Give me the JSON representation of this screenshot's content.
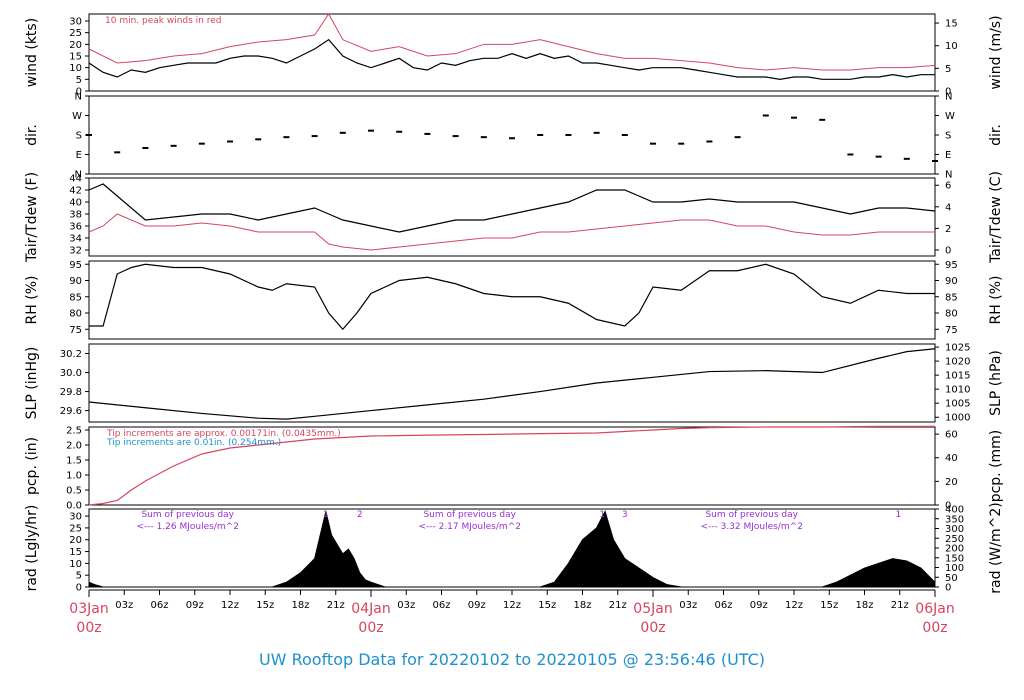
{
  "footer": "UW Rooftop Data for 20220102  to  20220105 @ 23:56:46  (UTC)",
  "colors": {
    "red": "#d6455d",
    "blue": "#1e90d0",
    "purple": "#9b2fd6",
    "black": "#000000"
  },
  "x_axis": {
    "hour_ticks": [
      "03z",
      "06z",
      "09z",
      "12z",
      "15z",
      "18z",
      "21z",
      "03z",
      "06z",
      "09z",
      "12z",
      "15z",
      "18z",
      "21z",
      "03z",
      "06z",
      "09z",
      "12z",
      "15z",
      "18z",
      "21z"
    ],
    "day_labels": [
      {
        "date": "03Jan",
        "hour": "00z",
        "day": 0
      },
      {
        "date": "04Jan",
        "hour": "00z",
        "day": 1
      },
      {
        "date": "05Jan",
        "hour": "00z",
        "day": 2
      },
      {
        "date": "06Jan",
        "hour": "00z",
        "day": 3
      }
    ]
  },
  "chart_data": [
    {
      "id": "wind",
      "type": "line",
      "ylabel": "wind (kts)",
      "ylabel_right": "wind (m/s)",
      "ylim": [
        0,
        33
      ],
      "yticks": [
        0,
        5,
        10,
        15,
        20,
        25,
        30
      ],
      "ylim_right": [
        0,
        17
      ],
      "yticks_right": [
        0,
        5,
        10,
        15
      ],
      "annotation": "10 min. peak winds in red",
      "series": [
        {
          "color": "#000000",
          "x": [
            0,
            0.05,
            0.1,
            0.15,
            0.2,
            0.25,
            0.3,
            0.35,
            0.4,
            0.45,
            0.5,
            0.55,
            0.6,
            0.65,
            0.7,
            0.75,
            0.8,
            0.85,
            0.9,
            0.95,
            1.0,
            1.05,
            1.1,
            1.15,
            1.2,
            1.25,
            1.3,
            1.35,
            1.4,
            1.45,
            1.5,
            1.55,
            1.6,
            1.65,
            1.7,
            1.75,
            1.8,
            1.85,
            1.9,
            1.95,
            2.0,
            2.05,
            2.1,
            2.15,
            2.2,
            2.25,
            2.3,
            2.35,
            2.4,
            2.45,
            2.5,
            2.55,
            2.6,
            2.65,
            2.7,
            2.75,
            2.8,
            2.85,
            2.9,
            2.95,
            3.0
          ],
          "y": [
            12,
            8,
            6,
            9,
            8,
            10,
            11,
            12,
            12,
            12,
            14,
            15,
            15,
            14,
            12,
            15,
            18,
            22,
            15,
            12,
            10,
            12,
            14,
            10,
            9,
            12,
            11,
            13,
            14,
            14,
            16,
            14,
            16,
            14,
            15,
            12,
            12,
            11,
            10,
            9,
            10,
            10,
            10,
            9,
            8,
            7,
            6,
            6,
            6,
            5,
            6,
            6,
            5,
            5,
            5,
            6,
            6,
            7,
            6,
            7,
            7
          ]
        },
        {
          "name": "10 min. peak winds in red",
          "color": "#d6455d",
          "x": [
            0,
            0.1,
            0.2,
            0.3,
            0.4,
            0.5,
            0.6,
            0.7,
            0.8,
            0.85,
            0.9,
            1.0,
            1.1,
            1.2,
            1.3,
            1.4,
            1.5,
            1.6,
            1.7,
            1.8,
            1.9,
            2.0,
            2.1,
            2.2,
            2.3,
            2.4,
            2.5,
            2.6,
            2.7,
            2.8,
            2.9,
            3.0
          ],
          "y": [
            18,
            12,
            13,
            15,
            16,
            19,
            21,
            22,
            24,
            33,
            22,
            17,
            19,
            15,
            16,
            20,
            20,
            22,
            19,
            16,
            14,
            14,
            13,
            12,
            10,
            9,
            10,
            9,
            9,
            10,
            10,
            11
          ]
        }
      ]
    },
    {
      "id": "dir",
      "type": "scatter",
      "ylabel": "dir.",
      "ylabel_right": "dir.",
      "ylim": [
        0,
        360
      ],
      "yticks_labels": [
        "N",
        "E",
        "S",
        "W",
        "N"
      ],
      "yticks_values": [
        0,
        90,
        180,
        270,
        360
      ],
      "series": [
        {
          "color": "#000000",
          "x": [
            0,
            0.1,
            0.2,
            0.3,
            0.4,
            0.5,
            0.6,
            0.7,
            0.8,
            0.9,
            1.0,
            1.1,
            1.2,
            1.3,
            1.4,
            1.5,
            1.6,
            1.7,
            1.8,
            1.9,
            2.0,
            2.1,
            2.2,
            2.3,
            2.4,
            2.5,
            2.6,
            2.7,
            2.8,
            2.9,
            3.0
          ],
          "y": [
            180,
            100,
            120,
            130,
            140,
            150,
            160,
            170,
            175,
            190,
            200,
            195,
            185,
            175,
            170,
            165,
            180,
            180,
            190,
            180,
            140,
            140,
            150,
            170,
            270,
            260,
            250,
            90,
            80,
            70,
            60
          ]
        }
      ]
    },
    {
      "id": "temp",
      "type": "line",
      "ylabel": "Tair/Tdew (F)",
      "ylabel_right": "Tair/Tdew (C)",
      "ylim": [
        31,
        44
      ],
      "yticks": [
        32,
        34,
        36,
        38,
        40,
        42,
        44
      ],
      "ylim_right": [
        -0.56,
        6.67
      ],
      "yticks_right": [
        0,
        2,
        4,
        6
      ],
      "series": [
        {
          "name": "Tair",
          "color": "#000000",
          "x": [
            0,
            0.05,
            0.1,
            0.2,
            0.3,
            0.4,
            0.5,
            0.6,
            0.7,
            0.8,
            0.85,
            0.9,
            1.0,
            1.1,
            1.2,
            1.3,
            1.4,
            1.5,
            1.6,
            1.7,
            1.8,
            1.9,
            2.0,
            2.1,
            2.2,
            2.3,
            2.4,
            2.5,
            2.6,
            2.7,
            2.8,
            2.9,
            3.0
          ],
          "y": [
            42,
            43,
            41,
            37,
            37.5,
            38,
            38,
            37,
            38,
            39,
            38,
            37,
            36,
            35,
            36,
            37,
            37,
            38,
            39,
            40,
            42,
            42,
            40,
            40,
            40.5,
            40,
            40,
            40,
            39,
            38,
            39,
            39,
            38.5
          ]
        },
        {
          "name": "Tdew",
          "color": "#d6455d",
          "x": [
            0,
            0.05,
            0.1,
            0.2,
            0.3,
            0.4,
            0.5,
            0.6,
            0.7,
            0.8,
            0.85,
            0.9,
            1.0,
            1.1,
            1.2,
            1.3,
            1.4,
            1.5,
            1.6,
            1.7,
            1.8,
            1.9,
            2.0,
            2.1,
            2.2,
            2.3,
            2.4,
            2.5,
            2.6,
            2.7,
            2.8,
            2.9,
            3.0
          ],
          "y": [
            35,
            36,
            38,
            36,
            36,
            36.5,
            36,
            35,
            35,
            35,
            33,
            32.5,
            32,
            32.5,
            33,
            33.5,
            34,
            34,
            35,
            35,
            35.5,
            36,
            36.5,
            37,
            37,
            36,
            36,
            35,
            34.5,
            34.5,
            35,
            35,
            35
          ]
        }
      ]
    },
    {
      "id": "rh",
      "type": "line",
      "ylabel": "RH (%)",
      "ylabel_right": "RH (%)",
      "ylim": [
        72,
        96
      ],
      "yticks": [
        75,
        80,
        85,
        90,
        95
      ],
      "series": [
        {
          "color": "#000000",
          "x": [
            0,
            0.05,
            0.1,
            0.15,
            0.2,
            0.3,
            0.4,
            0.5,
            0.6,
            0.65,
            0.7,
            0.8,
            0.85,
            0.9,
            0.95,
            1.0,
            1.1,
            1.2,
            1.3,
            1.4,
            1.5,
            1.6,
            1.7,
            1.8,
            1.9,
            1.95,
            2.0,
            2.1,
            2.2,
            2.3,
            2.4,
            2.5,
            2.6,
            2.7,
            2.8,
            2.9,
            3.0
          ],
          "y": [
            76,
            76,
            92,
            94,
            95,
            94,
            94,
            92,
            88,
            87,
            89,
            88,
            80,
            75,
            80,
            86,
            90,
            91,
            89,
            86,
            85,
            85,
            83,
            78,
            76,
            80,
            88,
            87,
            93,
            93,
            95,
            92,
            85,
            83,
            87,
            86,
            86
          ]
        }
      ]
    },
    {
      "id": "slp",
      "type": "line",
      "ylabel": "SLP (inHg)",
      "ylabel_right": "SLP (hPa)",
      "ylim": [
        29.48,
        30.3
      ],
      "yticks": [
        29.6,
        29.8,
        30.0,
        30.2
      ],
      "ylim_right": [
        998.3,
        1026.1
      ],
      "yticks_right": [
        1000,
        1005,
        1010,
        1015,
        1020,
        1025
      ],
      "series": [
        {
          "color": "#000000",
          "x": [
            0,
            0.2,
            0.4,
            0.6,
            0.7,
            0.8,
            1.0,
            1.2,
            1.4,
            1.6,
            1.8,
            2.0,
            2.2,
            2.4,
            2.6,
            2.8,
            2.9,
            3.0
          ],
          "y": [
            29.69,
            29.63,
            29.57,
            29.52,
            29.51,
            29.54,
            29.6,
            29.66,
            29.72,
            29.8,
            29.89,
            29.95,
            30.01,
            30.02,
            30.0,
            30.15,
            30.22,
            30.25
          ]
        }
      ]
    },
    {
      "id": "pcp",
      "type": "line",
      "ylabel": "pcp. (in)",
      "ylabel_right": "pcp. (mm)",
      "ylim": [
        0,
        2.6
      ],
      "yticks": [
        0.0,
        0.5,
        1.0,
        1.5,
        2.0,
        2.5
      ],
      "ylim_right": [
        0,
        66
      ],
      "yticks_right": [
        0,
        20,
        40,
        60
      ],
      "annotations": [
        {
          "text": "Tip increments are approx. 0.00171in. (0.0435mm.)",
          "color": "#d6455d"
        },
        {
          "text": "Tip increments are 0.01in. (0.254mm.)",
          "color": "#1e90d0"
        }
      ],
      "series": [
        {
          "color": "#d6455d",
          "x": [
            0,
            0.05,
            0.1,
            0.15,
            0.2,
            0.3,
            0.4,
            0.5,
            0.6,
            0.7,
            0.8,
            0.9,
            1.0,
            1.2,
            1.4,
            1.6,
            1.8,
            2.0,
            2.1,
            2.2,
            2.4,
            2.6,
            2.8,
            3.0
          ],
          "y": [
            0,
            0.05,
            0.15,
            0.5,
            0.8,
            1.3,
            1.7,
            1.9,
            2.0,
            2.1,
            2.2,
            2.25,
            2.3,
            2.33,
            2.35,
            2.38,
            2.4,
            2.5,
            2.55,
            2.58,
            2.6,
            2.6,
            2.62,
            2.62
          ]
        }
      ]
    },
    {
      "id": "rad",
      "type": "area",
      "ylabel": "rad (Lgly/hr)",
      "ylabel_right": "rad (W/m^2)",
      "ylim": [
        0,
        33
      ],
      "yticks": [
        0,
        5,
        10,
        15,
        20,
        25,
        30
      ],
      "ylim_right": [
        0,
        400
      ],
      "yticks_right": [
        0,
        50,
        100,
        150,
        200,
        250,
        300,
        350,
        400
      ],
      "annotations": [
        {
          "line1": "Sum of previous day",
          "line2": "<--- 1.26 MJoules/m^2",
          "day": 0.35
        },
        {
          "line1": "Sum of previous day",
          "line2": "<--- 2.17 MJoules/m^2",
          "day": 1.35
        },
        {
          "line1": "Sum of previous day",
          "line2": "<--- 3.32 MJoules/m^2",
          "day": 2.35
        }
      ],
      "markers": [
        {
          "label": "1",
          "day": 0.84
        },
        {
          "label": "2",
          "day": 0.96
        },
        {
          "label": "1",
          "day": 1.82
        },
        {
          "label": "3",
          "day": 1.9
        },
        {
          "label": "1",
          "day": 2.87
        }
      ],
      "series": [
        {
          "color": "#000000",
          "x": [
            0,
            0.02,
            0.05,
            0.65,
            0.7,
            0.75,
            0.8,
            0.84,
            0.86,
            0.88,
            0.9,
            0.92,
            0.94,
            0.96,
            0.98,
            1.0,
            1.05,
            1.6,
            1.65,
            1.7,
            1.75,
            1.8,
            1.83,
            1.86,
            1.9,
            1.95,
            2.0,
            2.05,
            2.1,
            2.6,
            2.65,
            2.7,
            2.75,
            2.8,
            2.85,
            2.9,
            2.95,
            3.0
          ],
          "y": [
            2,
            1,
            0,
            0,
            2,
            6,
            12,
            32,
            22,
            18,
            14,
            16,
            12,
            6,
            3,
            2,
            0,
            0,
            2,
            10,
            20,
            25,
            32,
            20,
            12,
            8,
            4,
            1,
            0,
            0,
            2,
            5,
            8,
            10,
            12,
            11,
            8,
            2
          ]
        }
      ]
    }
  ]
}
